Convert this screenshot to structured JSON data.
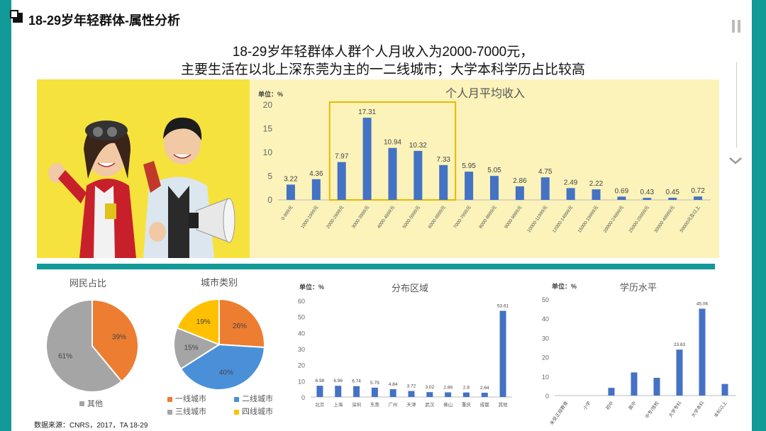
{
  "page": {
    "title": "18-29岁年轻群体-属性分析",
    "subtitle_line1": "18-29岁年轻群体人群个人月收入为2000-7000元，",
    "subtitle_line2": "主要生活在以北上深东莞为主的一二线城市；大学本科学历占比较高",
    "source": "数据来源：CNRS，2017，TA 18-29",
    "icons": [
      "pause-icon",
      "chevron-down-icon"
    ],
    "colors": {
      "teal": "#119a97",
      "bar_blue": "#4472c4",
      "orange": "#ed7d31",
      "gray": "#a5a5a5",
      "yellow": "#ffc000",
      "highlight": "#f0c000"
    }
  },
  "chart_data": [
    {
      "id": "income",
      "type": "bar",
      "title": "个人月平均收入",
      "unit_label": "单位：%",
      "categories": [
        "0-999元",
        "1000-1999元",
        "2000-2999元",
        "3000-3999元",
        "4000-4999元",
        "5000-5999元",
        "6000-6999元",
        "7000-7999元",
        "8000-8999元",
        "9000-9999元",
        "10000-11999元",
        "12000-14999元",
        "15000-19999元",
        "20000-24999元",
        "25000-29999元",
        "30000-49999元",
        "50000元及以上"
      ],
      "values": [
        3.22,
        4.36,
        7.97,
        17.31,
        10.94,
        10.32,
        7.33,
        5.95,
        5.05,
        2.86,
        4.75,
        2.49,
        2.22,
        0.69,
        0.43,
        0.45,
        0.72
      ],
      "value_labels": [
        "3.22",
        "4.36",
        "7.97",
        "17.31",
        "10.94",
        "10.32",
        "7.33",
        "5.95",
        "5.05",
        "2.86",
        "4.75",
        "2.49",
        "2.22",
        "0.69",
        "0.43",
        "0.45",
        "0.72"
      ],
      "ylim": [
        0,
        20
      ],
      "yticks": [
        "0",
        "5",
        "10",
        "15",
        "20"
      ],
      "highlight_range": [
        2,
        6
      ]
    },
    {
      "id": "netizen",
      "type": "pie",
      "title": "网民占比",
      "slices": [
        {
          "label": "",
          "value": 39,
          "text": "39%",
          "color": "#ed7d31"
        },
        {
          "label": "其他",
          "value": 61,
          "text": "61%",
          "color": "#a5a5a5"
        }
      ]
    },
    {
      "id": "citytype",
      "type": "pie",
      "title": "城市类别",
      "slices": [
        {
          "label": "一线城市",
          "value": 26,
          "text": "26%",
          "color": "#ed7d31"
        },
        {
          "label": "二线城市",
          "value": 40,
          "text": "40%",
          "color": "#4a90d9"
        },
        {
          "label": "三线城市",
          "value": 15,
          "text": "15%",
          "color": "#a5a5a5"
        },
        {
          "label": "四线城市",
          "value": 19,
          "text": "19%",
          "color": "#ffc000"
        }
      ]
    },
    {
      "id": "region",
      "type": "bar",
      "title": "分布区域",
      "unit_label": "单位：%",
      "categories": [
        "北京",
        "上海",
        "深圳",
        "东莞",
        "广州",
        "天津",
        "武汉",
        "佛山",
        "重庆",
        "成都",
        "其他"
      ],
      "values": [
        6.98,
        6.96,
        6.74,
        5.79,
        4.84,
        3.72,
        3.02,
        2.89,
        2.8,
        2.64,
        53.61
      ],
      "value_labels": [
        "6.98",
        "6.96",
        "6.74",
        "5.79",
        "4.84",
        "3.72",
        "3.02",
        "2.89",
        "2.8",
        "2.64",
        "53.61"
      ],
      "ylim": [
        0,
        60
      ],
      "yticks": [
        "0",
        "10",
        "20",
        "30",
        "40",
        "50",
        "60"
      ]
    },
    {
      "id": "education",
      "type": "bar",
      "title": "学历水平",
      "unit_label": "单位：%",
      "categories": [
        "未受正规教育",
        "小学",
        "初中",
        "高中",
        "中专/技校",
        "大学专科",
        "大学本科",
        "本科以上"
      ],
      "values": [
        0,
        0,
        4,
        12,
        9.2,
        23.83,
        45.06,
        6
      ],
      "value_labels": [
        "",
        "",
        "",
        "",
        "",
        "23.83",
        "45.06",
        ""
      ],
      "ylim": [
        0,
        50
      ],
      "yticks": [
        "0",
        "10",
        "20",
        "30",
        "40",
        "50"
      ]
    }
  ]
}
